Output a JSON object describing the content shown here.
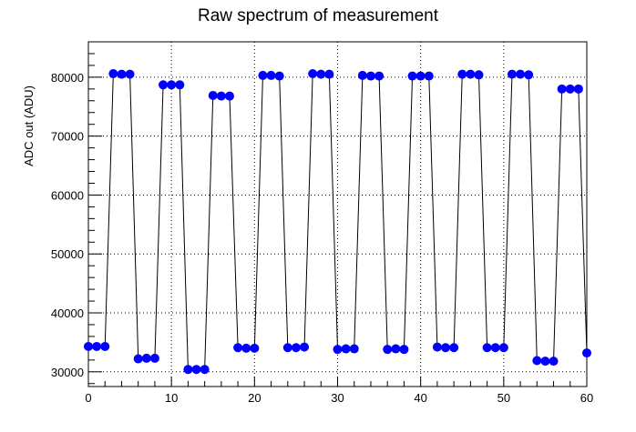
{
  "chart_data": {
    "type": "scatter",
    "title": "Raw spectrum of measurement",
    "xlabel": "",
    "ylabel": "ADC out (ADU)",
    "xlim": [
      0,
      60
    ],
    "ylim": [
      27500,
      86000
    ],
    "x_ticks": [
      0,
      10,
      20,
      30,
      40,
      50,
      60
    ],
    "y_ticks": [
      30000,
      40000,
      50000,
      60000,
      70000,
      80000
    ],
    "grid": true,
    "connected": true,
    "marker_color": "#0000ff",
    "line_color": "#000000",
    "series": [
      {
        "x": [
          0,
          1,
          2,
          3,
          4,
          5,
          6,
          7,
          8,
          9,
          10,
          11,
          12,
          13,
          14,
          15,
          16,
          17,
          18,
          19,
          20,
          21,
          22,
          23,
          24,
          25,
          26,
          27,
          28,
          29,
          30,
          31,
          32,
          33,
          34,
          35,
          36,
          37,
          38,
          39,
          40,
          41,
          42,
          43,
          44,
          45,
          46,
          47,
          48,
          49,
          50,
          51,
          52,
          53,
          54,
          55,
          56,
          57,
          58,
          59,
          60
        ],
        "y": [
          34300,
          34300,
          34300,
          80600,
          80500,
          80500,
          32200,
          32300,
          32300,
          78700,
          78700,
          78700,
          30400,
          30400,
          30400,
          76900,
          76800,
          76800,
          34100,
          34000,
          34000,
          80300,
          80300,
          80200,
          34100,
          34100,
          34200,
          80600,
          80500,
          80500,
          33800,
          33900,
          33900,
          80300,
          80200,
          80200,
          33800,
          33900,
          33800,
          80200,
          80200,
          80200,
          34200,
          34100,
          34100,
          80500,
          80500,
          80400,
          34100,
          34100,
          34100,
          80500,
          80500,
          80400,
          31900,
          31800,
          31800,
          78000,
          78000,
          78000,
          33200
        ]
      }
    ]
  }
}
